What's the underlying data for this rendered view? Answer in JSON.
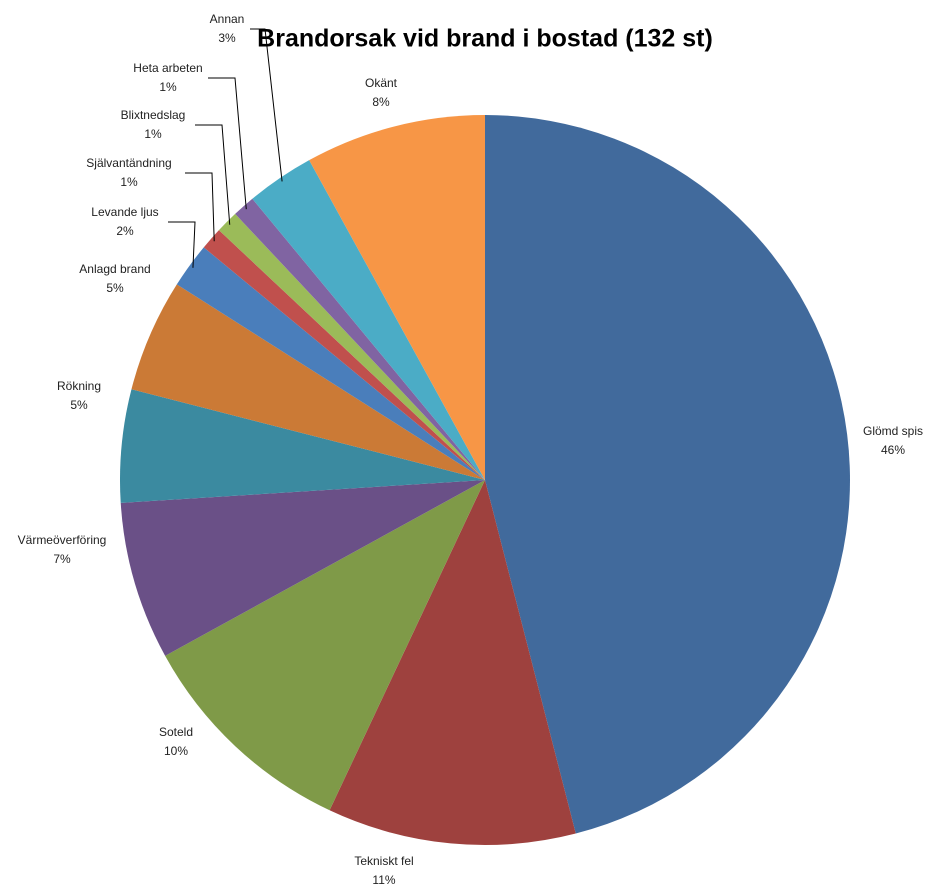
{
  "chart_data": {
    "type": "pie",
    "title": "Brandorsak vid brand i bostad (132 st)",
    "categories": [
      "Glömd spis",
      "Tekniskt fel",
      "Soteld",
      "Värmeöverföring",
      "Rökning",
      "Anlagd brand",
      "Levande ljus",
      "Självantändning",
      "Blixtnedslag",
      "Heta arbeten",
      "Annan",
      "Okänt"
    ],
    "values": [
      46,
      11,
      10,
      7,
      5,
      5,
      2,
      1,
      1,
      1,
      3,
      8
    ],
    "value_labels": [
      "46%",
      "11%",
      "10%",
      "7%",
      "5%",
      "5%",
      "2%",
      "1%",
      "1%",
      "1%",
      "3%",
      "8%"
    ],
    "colors": [
      "#416a9c",
      "#9e413e",
      "#7f9a48",
      "#6a5087",
      "#3b8aa0",
      "#cb7a36",
      "#4a7ebb",
      "#c0504d",
      "#9bbb59",
      "#8064a2",
      "#4bacc6",
      "#f79646"
    ]
  }
}
